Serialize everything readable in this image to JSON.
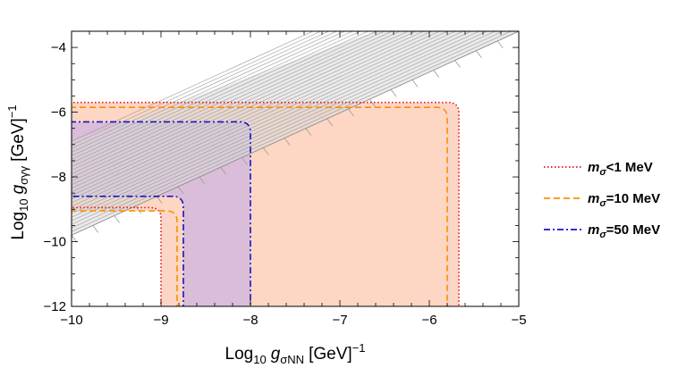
{
  "chart_data": {
    "type": "area",
    "title": "",
    "xlabel": {
      "prefix": "Log",
      "base": "10",
      "symbol": "g",
      "subscript": "σNN",
      "units": "[GeV]",
      "exponent": "−1"
    },
    "ylabel": {
      "prefix": "Log",
      "base": "10",
      "symbol": "g",
      "subscript": "σγγ",
      "units": "[GeV]",
      "exponent": "−1"
    },
    "xlim": [
      -10,
      -5
    ],
    "ylim": [
      -12,
      -3.5
    ],
    "xticks": [
      -10,
      -9,
      -8,
      -7,
      -6,
      -5
    ],
    "xtick_labels": [
      "−10",
      "−9",
      "−8",
      "−7",
      "−6",
      "−5"
    ],
    "yticks": [
      -12,
      -10,
      -8,
      -6,
      -4
    ],
    "ytick_labels": [
      "−12",
      "−10",
      "−8",
      "−6",
      "−4"
    ],
    "hatched_band": {
      "description": "gray hatched diagonal band",
      "lower_edge": [
        [
          -10,
          -9.8
        ],
        [
          -5,
          -3.5
        ]
      ],
      "upper_edge": [
        [
          -10,
          -6.9
        ],
        [
          -6.6,
          -3.5
        ]
      ],
      "color": "#9a9a9a"
    },
    "series": [
      {
        "name": "mσ<1 MeV",
        "label_symbol": "m",
        "label_subscript": "σ",
        "label_rest": "<1 MeV",
        "color": "#e8101e",
        "fill": "#fbd0c0",
        "dash": "dotted",
        "x_vertical": -9.0,
        "y_horizontal": -8.95,
        "x_outer": -5.67,
        "y_outer": -5.7
      },
      {
        "name": "mσ=10 MeV",
        "label_symbol": "m",
        "label_subscript": "σ",
        "label_rest": "=10 MeV",
        "color": "#ff8c00",
        "fill": "#fdd7c2",
        "dash": "dashed",
        "x_vertical": -8.82,
        "y_horizontal": -9.05,
        "x_outer": -5.8,
        "y_outer": -5.85
      },
      {
        "name": "mσ=50 MeV",
        "label_symbol": "m",
        "label_subscript": "σ",
        "label_rest": "=50 MeV",
        "color": "#1414c8",
        "fill": "#d4b8dc",
        "dash": "dashdot",
        "x_vertical": -8.75,
        "y_horizontal": -8.6,
        "x_outer": -8.0,
        "y_outer": -6.3
      }
    ],
    "legend_position": "right"
  }
}
